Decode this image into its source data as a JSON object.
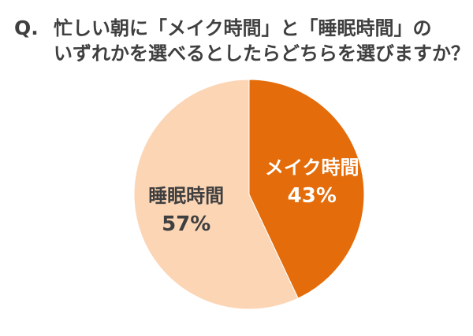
{
  "question": {
    "prefix": "Q.",
    "line1": "忙しい朝に「メイク時間」と「睡眠時間」の",
    "line2": "いずれかを選べるとしたらどちらを選びますか？"
  },
  "chart_data": {
    "type": "pie",
    "title": "",
    "slices": [
      {
        "label": "メイク時間",
        "value": 43,
        "value_label": "43%",
        "color": "#e46c0a",
        "text_color": "#ffffff"
      },
      {
        "label": "睡眠時間",
        "value": 57,
        "value_label": "57%",
        "color": "#fcd5b5",
        "text_color": "#3f3f3f"
      }
    ],
    "start": "12 o'clock",
    "direction": "clockwise",
    "legend": "none"
  }
}
